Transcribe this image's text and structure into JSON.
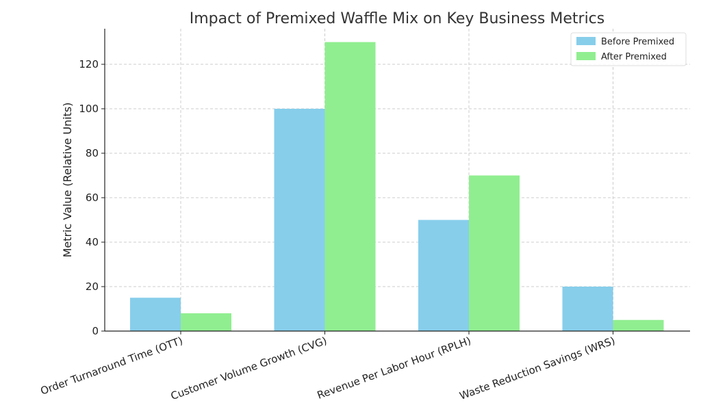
{
  "chart_data": {
    "type": "bar",
    "title": "Impact of Premixed Waffle Mix on Key Business Metrics",
    "xlabel": "",
    "ylabel": "Metric Value (Relative Units)",
    "categories": [
      "Order Turnaround Time (OTT)",
      "Customer Volume Growth (CVG)",
      "Revenue Per Labor Hour (RPLH)",
      "Waste Reduction Savings (WRS)"
    ],
    "series": [
      {
        "name": "Before Premixed",
        "values": [
          15,
          100,
          50,
          20
        ],
        "color": "#87ceeb"
      },
      {
        "name": "After Premixed",
        "values": [
          8,
          130,
          70,
          5
        ],
        "color": "#90ee90"
      }
    ],
    "ylim": [
      0,
      136
    ],
    "yticks": [
      0,
      20,
      40,
      60,
      80,
      100,
      120
    ],
    "grid": true,
    "legend_position": "top-right"
  }
}
